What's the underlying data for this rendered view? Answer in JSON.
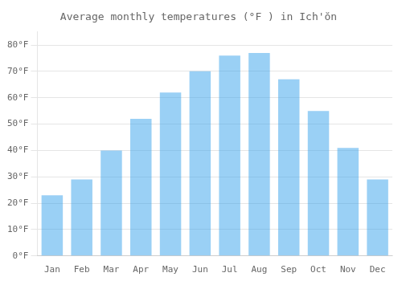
{
  "chart_data": {
    "type": "bar",
    "title": "Average monthly temperatures (°F ) in Ich'ŏn",
    "categories": [
      "Jan",
      "Feb",
      "Mar",
      "Apr",
      "May",
      "Jun",
      "Jul",
      "Aug",
      "Sep",
      "Oct",
      "Nov",
      "Dec"
    ],
    "values": [
      23,
      29,
      40,
      52,
      62,
      70,
      76,
      77,
      67,
      55,
      41,
      29
    ],
    "ylim": [
      0,
      85
    ],
    "yticks": [
      {
        "value": 0,
        "label": "0°F"
      },
      {
        "value": 10,
        "label": "10°F"
      },
      {
        "value": 20,
        "label": "20°F"
      },
      {
        "value": 30,
        "label": "30°F"
      },
      {
        "value": 40,
        "label": "40°F"
      },
      {
        "value": 50,
        "label": "50°F"
      },
      {
        "value": 60,
        "label": "60°F"
      },
      {
        "value": 70,
        "label": "70°F"
      },
      {
        "value": 80,
        "label": "80°F"
      }
    ],
    "grid": true
  }
}
